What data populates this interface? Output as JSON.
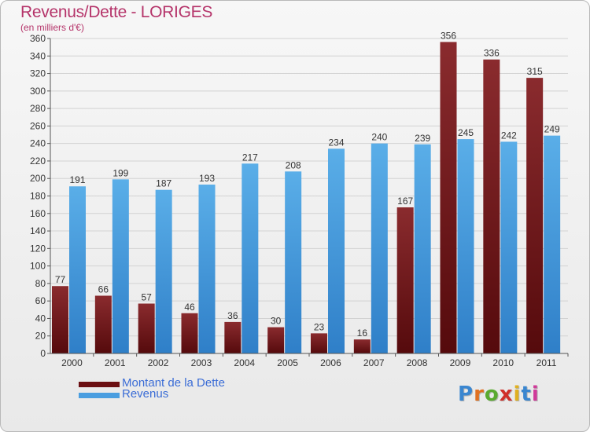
{
  "header": {
    "title": "Revenus/Dette - LORIGES",
    "subtitle": "(en milliers d'€)"
  },
  "legend": {
    "items": [
      {
        "label": "Montant de la Dette",
        "color": "#6b0f12"
      },
      {
        "label": "Revenus",
        "color": "#4a9ee0"
      }
    ]
  },
  "logo": {
    "text": "Proxiti",
    "letter_colors": [
      "#3a86d0",
      "#e07020",
      "#5aaa30",
      "#d0302a",
      "#e0b020",
      "#3a86d0",
      "#d03a9a"
    ]
  },
  "colors": {
    "debt_top": "#8a2b2e",
    "debt_bottom": "#550a0c",
    "revenue_top": "#5aaee8",
    "revenue_bottom": "#2f7fc8",
    "grid": "#d2d2d2",
    "axis_text": "#333333"
  },
  "chart_data": {
    "type": "bar",
    "title": "Revenus/Dette - LORIGES",
    "subtitle": "(en milliers d'€)",
    "categories": [
      "2000",
      "2001",
      "2002",
      "2003",
      "2004",
      "2005",
      "2006",
      "2007",
      "2008",
      "2009",
      "2010",
      "2011"
    ],
    "series": [
      {
        "name": "Montant de la Dette",
        "values": [
          77,
          66,
          57,
          46,
          36,
          30,
          23,
          16,
          167,
          356,
          336,
          315
        ]
      },
      {
        "name": "Revenus",
        "values": [
          191,
          199,
          187,
          193,
          217,
          208,
          234,
          240,
          239,
          245,
          242,
          249
        ]
      }
    ],
    "ylim": [
      0,
      360
    ],
    "yticks": [
      0,
      20,
      40,
      60,
      80,
      100,
      120,
      140,
      160,
      180,
      200,
      220,
      240,
      260,
      280,
      300,
      320,
      340,
      360
    ],
    "grid": true,
    "legend_position": "bottom-left"
  }
}
